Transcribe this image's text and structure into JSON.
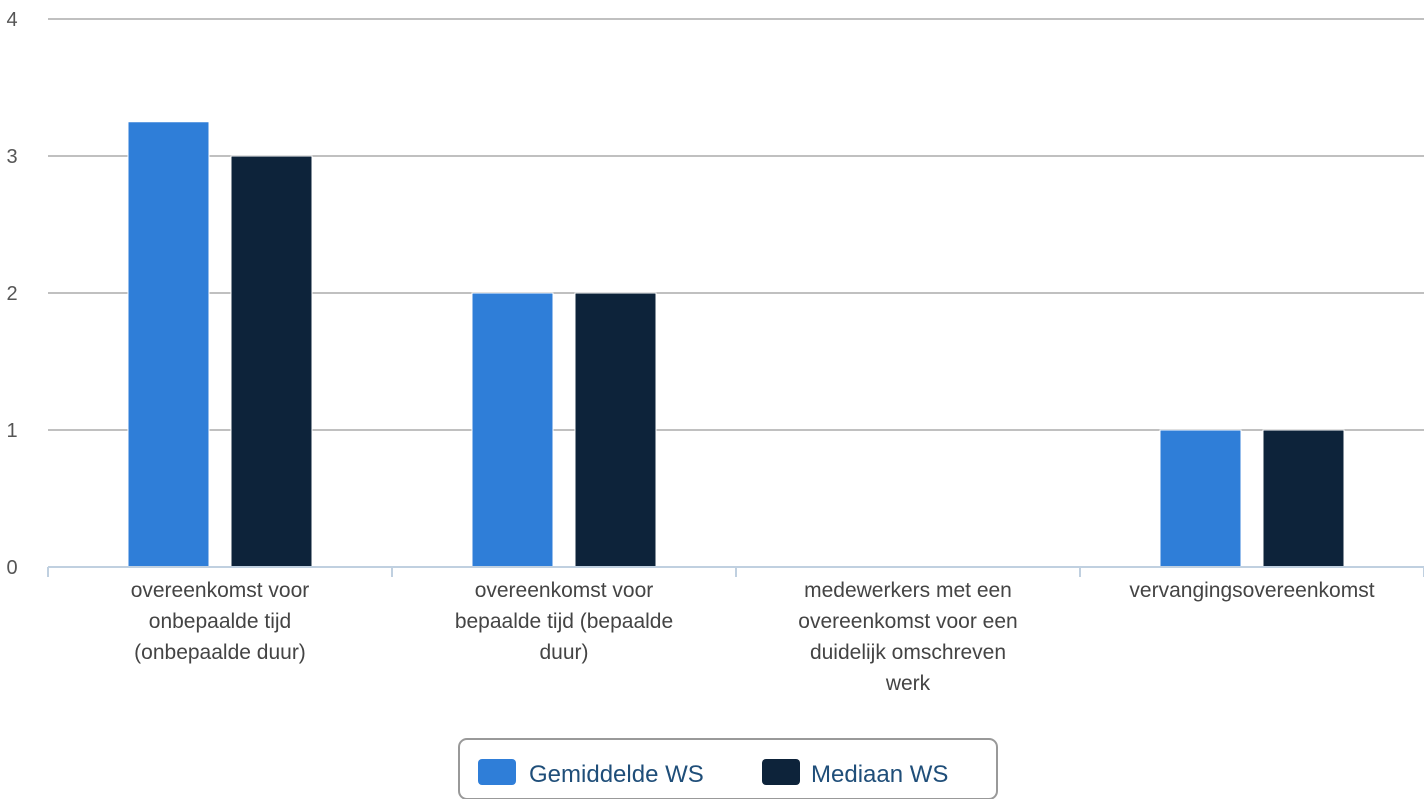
{
  "chart_data": {
    "type": "bar",
    "categories": [
      [
        "overeenkomst voor",
        "onbepaalde tijd",
        "(onbepaalde duur)"
      ],
      [
        "overeenkomst voor",
        "bepaalde tijd (bepaalde",
        "duur)"
      ],
      [
        "medewerkers met een",
        "overeenkomst voor een",
        "duidelijk omschreven",
        "werk"
      ],
      [
        "vervangingsovereenkomst"
      ]
    ],
    "series": [
      {
        "name": "Gemiddelde WS",
        "values": [
          3.25,
          2,
          0,
          1
        ],
        "color": "#2f7ed8"
      },
      {
        "name": "Mediaan WS",
        "values": [
          3,
          2,
          0,
          1
        ],
        "color": "#0d233a"
      }
    ],
    "yticks": [
      "0",
      "1",
      "2",
      "3",
      "4"
    ],
    "ylim": [
      0,
      4
    ],
    "grid": true,
    "legend_position": "bottom-center"
  }
}
